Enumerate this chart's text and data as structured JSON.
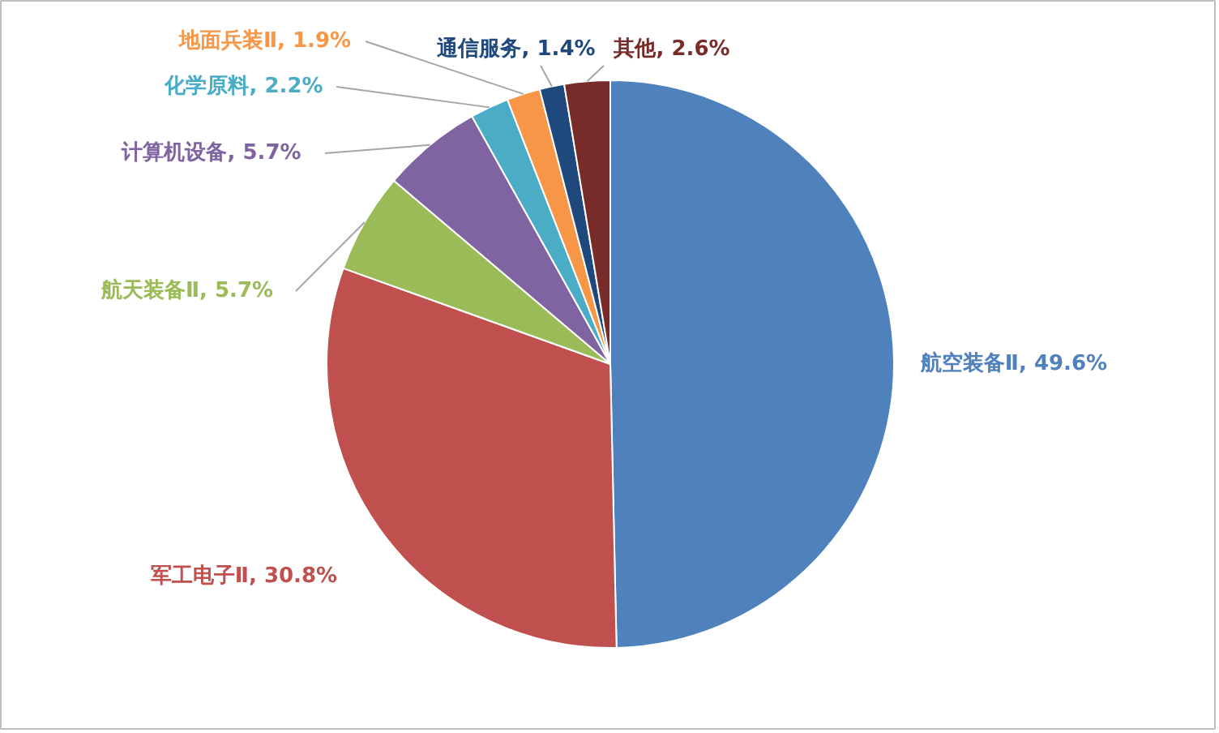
{
  "chart_data": {
    "type": "pie",
    "categories": [
      "航空装备Ⅱ",
      "军工电子Ⅱ",
      "航天装备Ⅱ",
      "计算机设备",
      "化学原料",
      "地面兵装Ⅱ",
      "通信服务",
      "其他"
    ],
    "values": [
      49.6,
      30.8,
      5.7,
      5.7,
      2.2,
      1.9,
      1.4,
      2.6
    ],
    "value_labels": [
      "49.6%",
      "30.8%",
      "5.7%",
      "5.7%",
      "2.2%",
      "1.9%",
      "1.4%",
      "2.6%"
    ],
    "colors": [
      "#4f81bd",
      "#c0504d",
      "#9bbb59",
      "#8064a2",
      "#4bacc6",
      "#f79646",
      "#1f497d",
      "#772c2a"
    ],
    "legend": false
  }
}
